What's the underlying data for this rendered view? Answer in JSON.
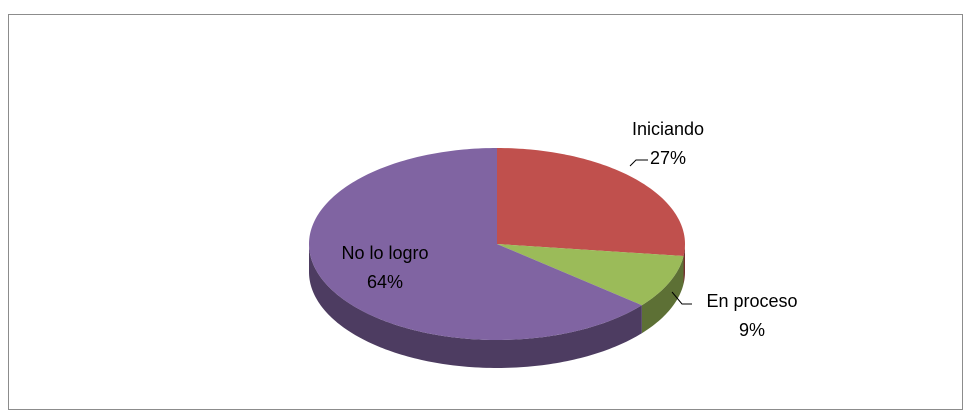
{
  "chart_data": {
    "type": "pie",
    "categories": [
      "Iniciando",
      "En proceso",
      "No lo logro"
    ],
    "values": [
      27,
      9,
      64
    ],
    "value_labels": [
      "27%",
      "9%",
      "64%"
    ],
    "colors": [
      "#c0504d",
      "#9bbb59",
      "#8064a2"
    ]
  }
}
